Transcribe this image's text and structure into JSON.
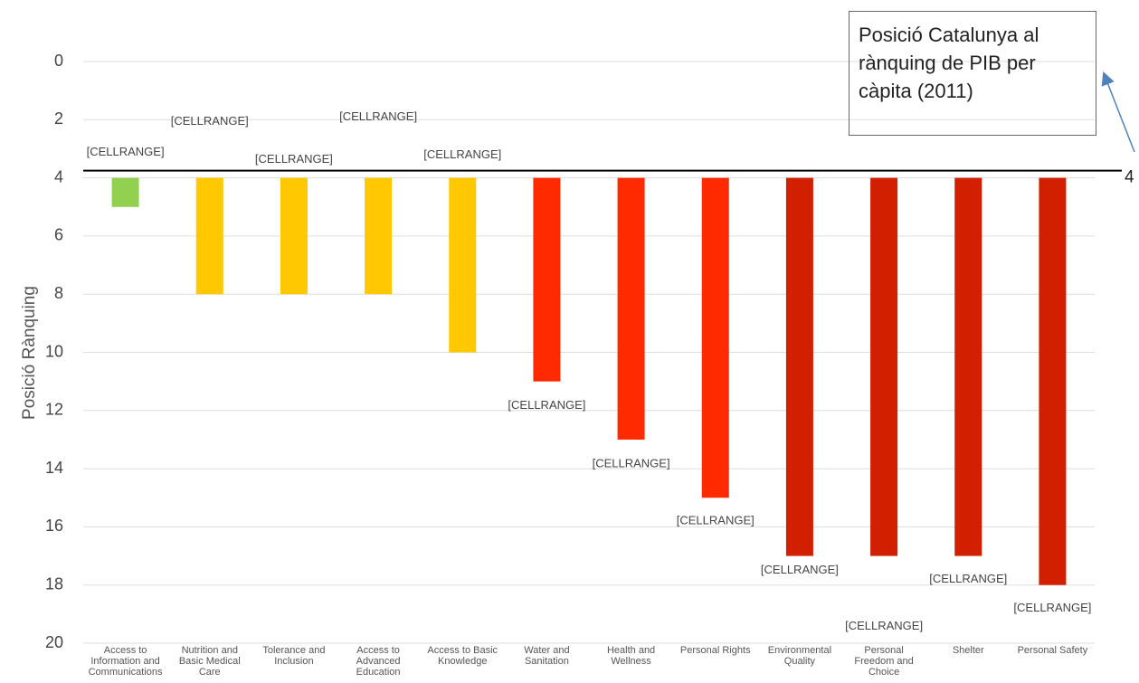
{
  "chart_data": {
    "type": "bar",
    "ylabel": "Posició Rànquing",
    "categories": [
      "Access to Information and Communications",
      "Nutrition and Basic Medical Care",
      "Tolerance and Inclusion",
      "Access to Advanced Education",
      "Access to Basic Knowledge",
      "Water and Sanitation",
      "Health and Wellness",
      "Personal Rights",
      "Environmental Quality",
      "Personal Freedom and Choice",
      "Shelter",
      "Personal Safety"
    ],
    "values": [
      5,
      8,
      8,
      8,
      10,
      11,
      13,
      15,
      17,
      17,
      17,
      18
    ],
    "colors": [
      "#92d050",
      "#ffc800",
      "#ffc800",
      "#ffc800",
      "#ffc800",
      "#ff2a00",
      "#ff2a00",
      "#ff2a00",
      "#d11f00",
      "#d11f00",
      "#d11f00",
      "#d11f00"
    ],
    "data_labels": [
      "[CELLRANGE]",
      "[CELLRANGE]",
      "[CELLRANGE]",
      "[CELLRANGE]",
      "[CELLRANGE]",
      "[CELLRANGE]",
      "[CELLRANGE]",
      "[CELLRANGE]",
      "[CELLRANGE]",
      "[CELLRANGE]",
      "[CELLRANGE]",
      "[CELLRANGE]"
    ],
    "baseline": 4,
    "inverted": true,
    "ylim": [
      0,
      20
    ],
    "yticks": [
      0,
      2,
      4,
      6,
      8,
      10,
      12,
      14,
      16,
      18,
      20
    ],
    "grid": true,
    "annotation": "Posició Catalunya al rànquing de PIB per càpita (2011)"
  }
}
